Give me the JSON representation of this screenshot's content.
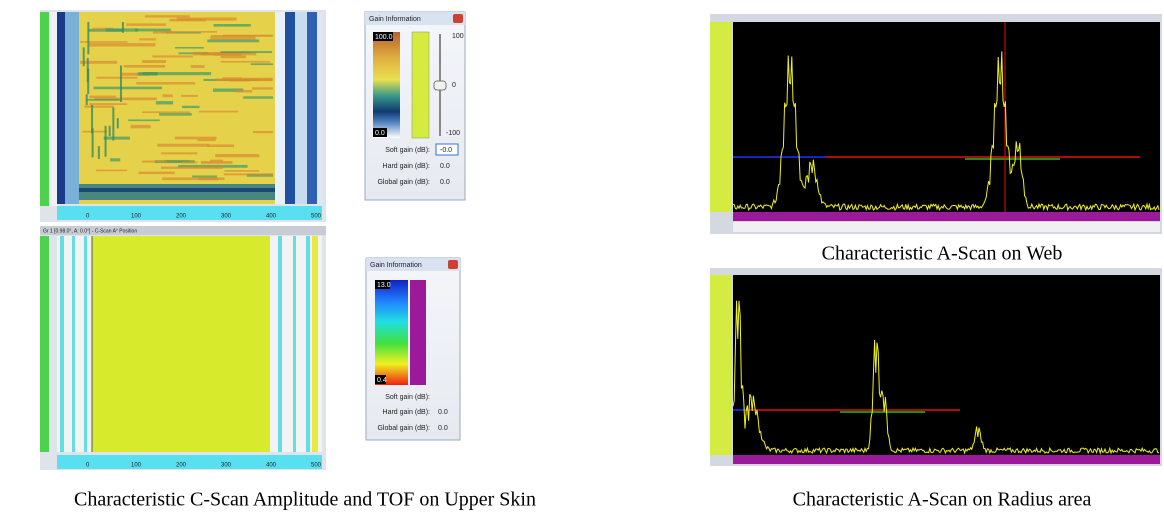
{
  "cscan_amplitude": {
    "x_ticks": [
      "0",
      "100",
      "200",
      "300",
      "400",
      "500"
    ]
  },
  "gain_amplitude": {
    "title": "Gain Information",
    "scale_max": "100.0",
    "scale_min": "0.0",
    "slider_ticks": [
      "100",
      "0",
      "-100"
    ],
    "rows": [
      {
        "label": "Soft gain (dB):",
        "value": "-0.0"
      },
      {
        "label": "Hard gain (dB):",
        "value": "0.0"
      },
      {
        "label": "Global gain (dB):",
        "value": "0.0"
      }
    ]
  },
  "cscan_tof": {
    "title": "Gr 1 [0.98.0°, A: 0.0°] - C-Scan A° Position",
    "x_ticks": [
      "0",
      "100",
      "200",
      "300",
      "400",
      "500"
    ]
  },
  "gain_tof": {
    "title": "Gain Information",
    "scale_max": "13.0",
    "scale_min": "0.4",
    "rows": [
      {
        "label": "Soft gain (dB):"
      },
      {
        "label": "Hard gain (dB):",
        "value": "0.0"
      },
      {
        "label": "Global gain (dB):",
        "value": "0.0"
      }
    ]
  },
  "captions": {
    "cscan": "Characteristic C-Scan Amplitude  and TOF on Upper Skin",
    "ascan_web": "Characteristic A-Scan on Web",
    "ascan_radius": "Characteristic A-Scan on Radius area"
  }
}
